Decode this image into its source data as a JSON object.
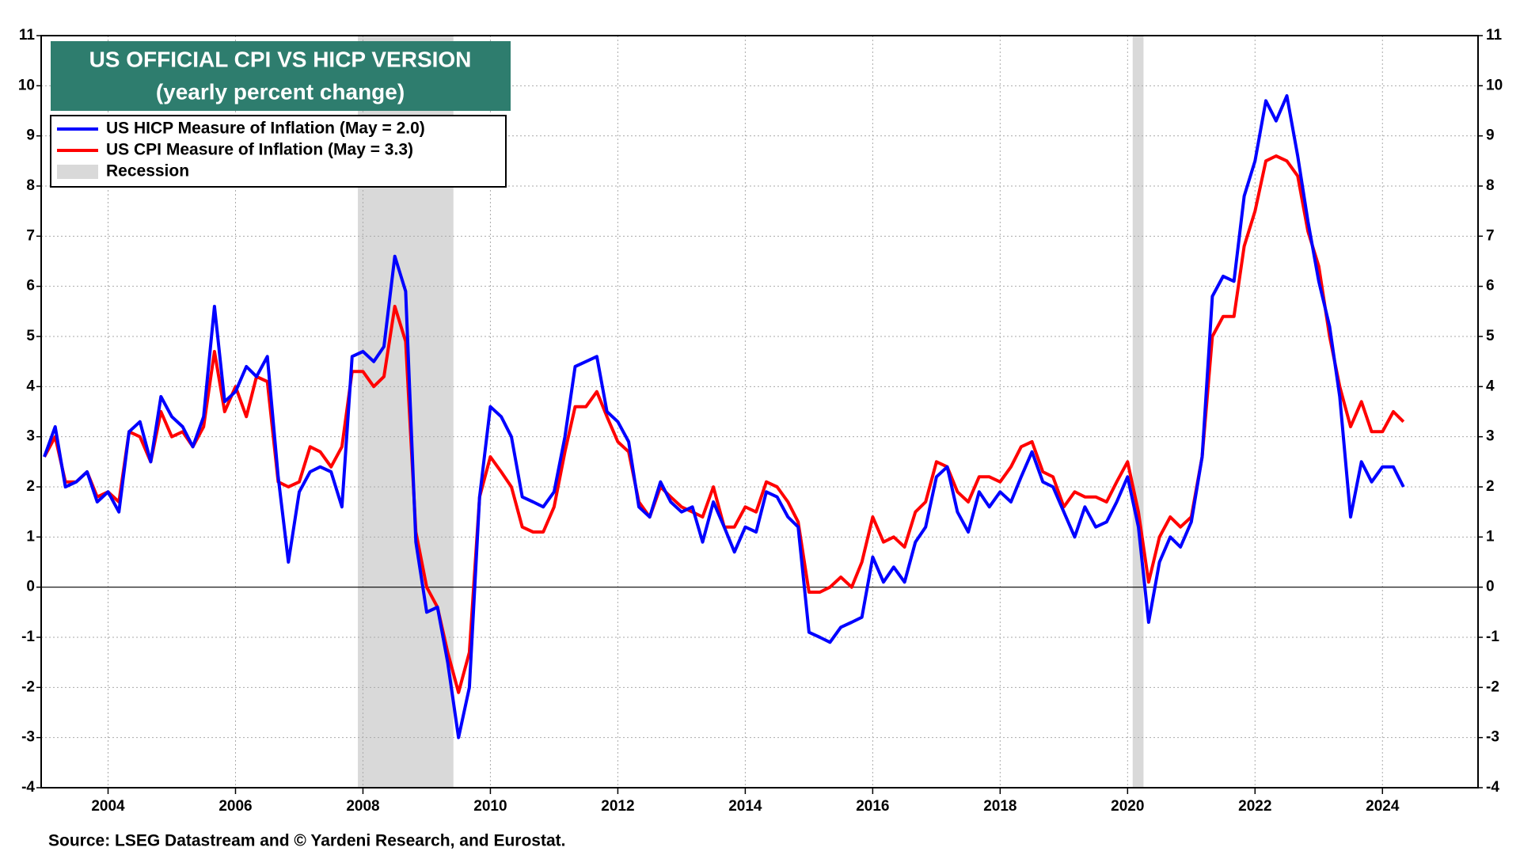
{
  "chart_data": {
    "type": "line",
    "title": "US OFFICIAL CPI VS HICP VERSION",
    "subtitle": "(yearly percent change)",
    "source": "Source: LSEG Datastream and © Yardeni Research, and Eurostat.",
    "recession_label": "Recession",
    "recession_color": "#d9d9d9",
    "recessions": [
      [
        2007.92,
        2009.42
      ],
      [
        2020.08,
        2020.25
      ]
    ],
    "xlim": [
      2002.95,
      2025.5
    ],
    "xticks": [
      2004,
      2006,
      2008,
      2010,
      2012,
      2014,
      2016,
      2018,
      2020,
      2022,
      2024
    ],
    "ylim": [
      -4,
      11
    ],
    "yticks": [
      -4,
      -3,
      -2,
      -1,
      0,
      1,
      2,
      3,
      4,
      5,
      6,
      7,
      8,
      9,
      10,
      11
    ],
    "grid": true,
    "legend": "upper left",
    "x": [
      2003,
      2003.17,
      2003.33,
      2003.5,
      2003.67,
      2003.83,
      2004,
      2004.17,
      2004.33,
      2004.5,
      2004.67,
      2004.83,
      2005,
      2005.17,
      2005.33,
      2005.5,
      2005.67,
      2005.83,
      2006,
      2006.17,
      2006.33,
      2006.5,
      2006.67,
      2006.83,
      2007,
      2007.17,
      2007.33,
      2007.5,
      2007.67,
      2007.83,
      2008,
      2008.17,
      2008.33,
      2008.5,
      2008.67,
      2008.83,
      2009,
      2009.17,
      2009.33,
      2009.5,
      2009.67,
      2009.83,
      2010,
      2010.17,
      2010.33,
      2010.5,
      2010.67,
      2010.83,
      2011,
      2011.17,
      2011.33,
      2011.5,
      2011.67,
      2011.83,
      2012,
      2012.17,
      2012.33,
      2012.5,
      2012.67,
      2012.83,
      2013,
      2013.17,
      2013.33,
      2013.5,
      2013.67,
      2013.83,
      2014,
      2014.17,
      2014.33,
      2014.5,
      2014.67,
      2014.83,
      2015,
      2015.17,
      2015.33,
      2015.5,
      2015.67,
      2015.83,
      2016,
      2016.17,
      2016.33,
      2016.5,
      2016.67,
      2016.83,
      2017,
      2017.17,
      2017.33,
      2017.5,
      2017.67,
      2017.83,
      2018,
      2018.17,
      2018.33,
      2018.5,
      2018.67,
      2018.83,
      2019,
      2019.17,
      2019.33,
      2019.5,
      2019.67,
      2019.83,
      2020,
      2020.17,
      2020.33,
      2020.5,
      2020.67,
      2020.83,
      2021,
      2021.17,
      2021.33,
      2021.5,
      2021.67,
      2021.83,
      2022,
      2022.17,
      2022.33,
      2022.5,
      2022.67,
      2022.83,
      2023,
      2023.17,
      2023.33,
      2023.5,
      2023.67,
      2023.83,
      2024,
      2024.17,
      2024.33
    ],
    "series": [
      {
        "name": "US HICP Measure of Inflation (May = 2.0)",
        "color": "#0000ff",
        "values": [
          2.6,
          3.2,
          2.0,
          2.1,
          2.3,
          1.7,
          1.9,
          1.5,
          3.1,
          3.3,
          2.5,
          3.8,
          3.4,
          3.2,
          2.8,
          3.4,
          5.6,
          3.7,
          3.9,
          4.4,
          4.2,
          4.6,
          2.2,
          0.5,
          1.9,
          2.3,
          2.4,
          2.3,
          1.6,
          4.6,
          4.7,
          4.5,
          4.8,
          6.6,
          5.9,
          0.9,
          -0.5,
          -0.4,
          -1.5,
          -3.0,
          -2.0,
          1.8,
          3.6,
          3.4,
          3.0,
          1.8,
          1.7,
          1.6,
          1.9,
          3.0,
          4.4,
          4.5,
          4.6,
          3.5,
          3.3,
          2.9,
          1.6,
          1.4,
          2.1,
          1.7,
          1.5,
          1.6,
          0.9,
          1.7,
          1.2,
          0.7,
          1.2,
          1.1,
          1.9,
          1.8,
          1.4,
          1.2,
          -0.9,
          -1.0,
          -1.1,
          -0.8,
          -0.7,
          -0.6,
          0.6,
          0.1,
          0.4,
          0.1,
          0.9,
          1.2,
          2.2,
          2.4,
          1.5,
          1.1,
          1.9,
          1.6,
          1.9,
          1.7,
          2.2,
          2.7,
          2.1,
          2.0,
          1.5,
          1.0,
          1.6,
          1.2,
          1.3,
          1.7,
          2.2,
          1.2,
          -0.7,
          0.5,
          1.0,
          0.8,
          1.3,
          2.6,
          5.8,
          6.2,
          6.1,
          7.8,
          8.5,
          9.7,
          9.3,
          9.8,
          8.6,
          7.3,
          6.1,
          5.2,
          3.8,
          1.4,
          2.5,
          2.1,
          2.4,
          2.4,
          2.0
        ]
      },
      {
        "name": "US CPI Measure of Inflation (May = 3.3)",
        "color": "#ff0000",
        "values": [
          2.6,
          3.0,
          2.1,
          2.1,
          2.3,
          1.8,
          1.9,
          1.7,
          3.1,
          3.0,
          2.5,
          3.5,
          3.0,
          3.1,
          2.8,
          3.2,
          4.7,
          3.5,
          4.0,
          3.4,
          4.2,
          4.1,
          2.1,
          2.0,
          2.1,
          2.8,
          2.7,
          2.4,
          2.8,
          4.3,
          4.3,
          4.0,
          4.2,
          5.6,
          4.9,
          1.1,
          0.0,
          -0.4,
          -1.3,
          -2.1,
          -1.3,
          1.8,
          2.6,
          2.3,
          2.0,
          1.2,
          1.1,
          1.1,
          1.6,
          2.7,
          3.6,
          3.6,
          3.9,
          3.4,
          2.9,
          2.7,
          1.7,
          1.4,
          2.0,
          1.8,
          1.6,
          1.5,
          1.4,
          2.0,
          1.2,
          1.2,
          1.6,
          1.5,
          2.1,
          2.0,
          1.7,
          1.3,
          -0.1,
          -0.1,
          0.0,
          0.2,
          0.0,
          0.5,
          1.4,
          0.9,
          1.0,
          0.8,
          1.5,
          1.7,
          2.5,
          2.4,
          1.9,
          1.7,
          2.2,
          2.2,
          2.1,
          2.4,
          2.8,
          2.9,
          2.3,
          2.2,
          1.6,
          1.9,
          1.8,
          1.8,
          1.7,
          2.1,
          2.5,
          1.5,
          0.1,
          1.0,
          1.4,
          1.2,
          1.4,
          2.6,
          5.0,
          5.4,
          5.4,
          6.8,
          7.5,
          8.5,
          8.6,
          8.5,
          8.2,
          7.1,
          6.4,
          5.0,
          4.0,
          3.2,
          3.7,
          3.1,
          3.1,
          3.5,
          3.3
        ]
      }
    ]
  }
}
